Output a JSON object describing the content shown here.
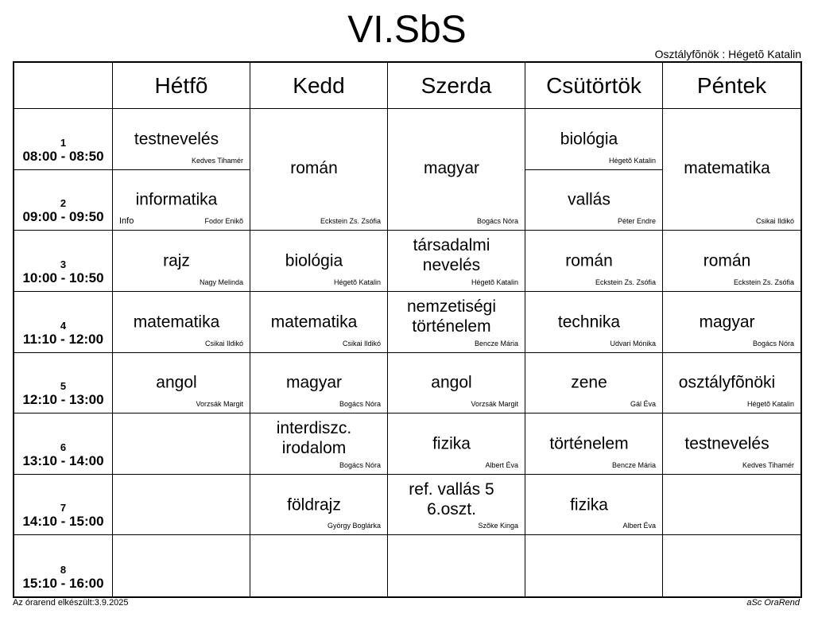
{
  "title": "VI.SbS",
  "head_teacher": "Osztályfõnök : Hégetõ Katalin",
  "days": [
    "Hétfõ",
    "Kedd",
    "Szerda",
    "Csütörtök",
    "Péntek"
  ],
  "periods": [
    {
      "num": "1",
      "time": "08:00 - 08:50"
    },
    {
      "num": "2",
      "time": "09:00 - 09:50"
    },
    {
      "num": "3",
      "time": "10:00 - 10:50"
    },
    {
      "num": "4",
      "time": "11:10 - 12:00"
    },
    {
      "num": "5",
      "time": "12:10 - 13:00"
    },
    {
      "num": "6",
      "time": "13:10 - 14:00"
    },
    {
      "num": "7",
      "time": "14:10 - 15:00"
    },
    {
      "num": "8",
      "time": "15:10 - 16:00"
    }
  ],
  "lessons": [
    {
      "day": 0,
      "period": 0,
      "subject": "testnevelés",
      "teacher": "Kedves Tihamér"
    },
    {
      "day": 0,
      "period": 1,
      "subject": "informatika",
      "teacher": "Fodor Enikõ",
      "room": "Info"
    },
    {
      "day": 0,
      "period": 2,
      "subject": "rajz",
      "teacher": "Nagy Melinda"
    },
    {
      "day": 0,
      "period": 3,
      "subject": "matematika",
      "teacher": "Csikai Ildikó"
    },
    {
      "day": 0,
      "period": 4,
      "subject": "angol",
      "teacher": "Vorzsák Margit"
    },
    {
      "day": 1,
      "period": 0,
      "span": 2,
      "subject": "román",
      "teacher": "Eckstein  Zs. Zsófia"
    },
    {
      "day": 1,
      "period": 2,
      "subject": "biológia",
      "teacher": "Hégetõ Katalin"
    },
    {
      "day": 1,
      "period": 3,
      "subject": "matematika",
      "teacher": "Csikai Ildikó"
    },
    {
      "day": 1,
      "period": 4,
      "subject": "magyar",
      "teacher": "Bogács Nóra"
    },
    {
      "day": 1,
      "period": 5,
      "subject": "interdiszc. irodalom",
      "teacher": "Bogács Nóra",
      "multi": true
    },
    {
      "day": 1,
      "period": 6,
      "subject": "földrajz",
      "teacher": "György Boglárka"
    },
    {
      "day": 2,
      "period": 0,
      "span": 2,
      "subject": "magyar",
      "teacher": "Bogács Nóra"
    },
    {
      "day": 2,
      "period": 2,
      "subject": "társadalmi nevelés",
      "teacher": "Hégetõ Katalin",
      "multi": true
    },
    {
      "day": 2,
      "period": 3,
      "subject": "nemzetiségi történelem",
      "teacher": "Bencze Mária",
      "multi": true
    },
    {
      "day": 2,
      "period": 4,
      "subject": "angol",
      "teacher": "Vorzsák Margit"
    },
    {
      "day": 2,
      "period": 5,
      "subject": "fizika",
      "teacher": "Albert Éva"
    },
    {
      "day": 2,
      "period": 6,
      "subject": "ref. vallás 5 6.oszt.",
      "teacher": "Szõke Kinga",
      "multi": true
    },
    {
      "day": 3,
      "period": 0,
      "subject": "biológia",
      "teacher": "Hégetõ Katalin"
    },
    {
      "day": 3,
      "period": 1,
      "subject": "vallás",
      "teacher": "Péter Endre"
    },
    {
      "day": 3,
      "period": 2,
      "subject": "román",
      "teacher": "Eckstein  Zs. Zsófia"
    },
    {
      "day": 3,
      "period": 3,
      "subject": "technika",
      "teacher": "Udvari Mónika"
    },
    {
      "day": 3,
      "period": 4,
      "subject": "zene",
      "teacher": "Gál Éva"
    },
    {
      "day": 3,
      "period": 5,
      "subject": "történelem",
      "teacher": "Bencze Mária"
    },
    {
      "day": 3,
      "period": 6,
      "subject": "fizika",
      "teacher": "Albert Éva"
    },
    {
      "day": 4,
      "period": 0,
      "span": 2,
      "subject": "matematika",
      "teacher": "Csikai Ildikó"
    },
    {
      "day": 4,
      "period": 2,
      "subject": "román",
      "teacher": "Eckstein  Zs. Zsófia"
    },
    {
      "day": 4,
      "period": 3,
      "subject": "magyar",
      "teacher": "Bogács Nóra"
    },
    {
      "day": 4,
      "period": 4,
      "subject": "osztályfõnöki",
      "teacher": "Hégetõ Katalin"
    },
    {
      "day": 4,
      "period": 5,
      "subject": "testnevelés",
      "teacher": "Kedves Tihamér"
    }
  ],
  "footer": {
    "left": "Az órarend elkészült:3.9.2025",
    "right": "aSc OraRend"
  }
}
